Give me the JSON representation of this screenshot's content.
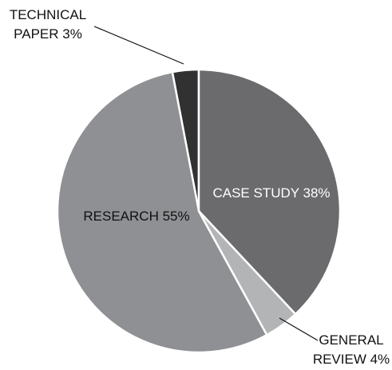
{
  "chart_data": {
    "type": "pie",
    "values": [
      38,
      4,
      55,
      3
    ],
    "labels": [
      [
        "CASE STUDY 38%"
      ],
      [
        "GENERAL",
        "REVIEW 4%"
      ],
      [
        "RESEARCH 55%"
      ],
      [
        "TECHNICAL",
        "PAPER 3%"
      ]
    ],
    "colors": [
      "#6b6b6e",
      "#b3b4b6",
      "#8f9093",
      "#313131"
    ]
  }
}
